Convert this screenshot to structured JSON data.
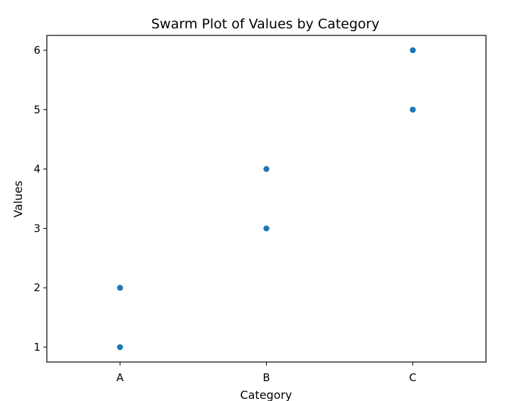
{
  "chart_data": {
    "type": "scatter",
    "subtype": "swarm",
    "title": "Swarm Plot of Values by Category",
    "xlabel": "Category",
    "ylabel": "Values",
    "categories": [
      "A",
      "B",
      "C"
    ],
    "ylim": [
      0.75,
      6.25
    ],
    "yticks": [
      1,
      2,
      3,
      4,
      5,
      6
    ],
    "grid": false,
    "legend": "none",
    "point_color": "#1f77b4",
    "points": [
      {
        "category": "A",
        "value": 1
      },
      {
        "category": "A",
        "value": 2
      },
      {
        "category": "B",
        "value": 3
      },
      {
        "category": "B",
        "value": 4
      },
      {
        "category": "C",
        "value": 5
      },
      {
        "category": "C",
        "value": 6
      }
    ]
  }
}
